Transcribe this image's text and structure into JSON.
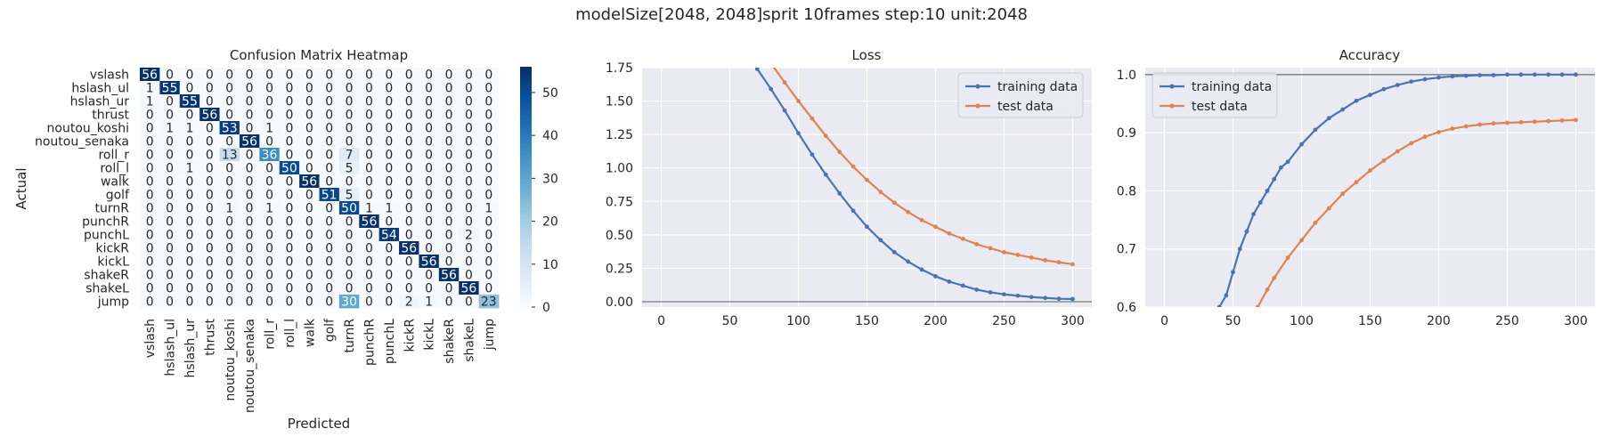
{
  "figure": {
    "suptitle": "modelSize[2048, 2048]sprit 10frames step:10 unit:2048"
  },
  "colors": {
    "training": "#4c72b0",
    "test": "#dd8452",
    "panel_bg": "#eaeaf2",
    "grid": "#ffffff",
    "hline": "#777777"
  },
  "chart_data": [
    {
      "type": "heatmap",
      "title": "Confusion Matrix Heatmap",
      "xlabel": "Predicted",
      "ylabel": "Actual",
      "labels": [
        "vslash",
        "hslash_ul",
        "hslash_ur",
        "thrust",
        "noutou_koshi",
        "noutou_senaka",
        "roll_r",
        "roll_l",
        "walk",
        "golf",
        "turnR",
        "punchR",
        "punchL",
        "kickR",
        "kickL",
        "shakeR",
        "shakeL",
        "jump"
      ],
      "matrix": [
        [
          56,
          0,
          0,
          0,
          0,
          0,
          0,
          0,
          0,
          0,
          0,
          0,
          0,
          0,
          0,
          0,
          0,
          0
        ],
        [
          1,
          55,
          0,
          0,
          0,
          0,
          0,
          0,
          0,
          0,
          0,
          0,
          0,
          0,
          0,
          0,
          0,
          0
        ],
        [
          1,
          0,
          55,
          0,
          0,
          0,
          0,
          0,
          0,
          0,
          0,
          0,
          0,
          0,
          0,
          0,
          0,
          0
        ],
        [
          0,
          0,
          0,
          56,
          0,
          0,
          0,
          0,
          0,
          0,
          0,
          0,
          0,
          0,
          0,
          0,
          0,
          0
        ],
        [
          0,
          1,
          1,
          0,
          53,
          0,
          1,
          0,
          0,
          0,
          0,
          0,
          0,
          0,
          0,
          0,
          0,
          0
        ],
        [
          0,
          0,
          0,
          0,
          0,
          56,
          0,
          0,
          0,
          0,
          0,
          0,
          0,
          0,
          0,
          0,
          0,
          0
        ],
        [
          0,
          0,
          0,
          0,
          13,
          0,
          36,
          0,
          0,
          0,
          7,
          0,
          0,
          0,
          0,
          0,
          0,
          0
        ],
        [
          0,
          0,
          1,
          0,
          0,
          0,
          0,
          50,
          0,
          0,
          5,
          0,
          0,
          0,
          0,
          0,
          0,
          0
        ],
        [
          0,
          0,
          0,
          0,
          0,
          0,
          0,
          0,
          56,
          0,
          0,
          0,
          0,
          0,
          0,
          0,
          0,
          0
        ],
        [
          0,
          0,
          0,
          0,
          0,
          0,
          0,
          0,
          0,
          51,
          5,
          0,
          0,
          0,
          0,
          0,
          0,
          0
        ],
        [
          0,
          0,
          0,
          0,
          1,
          0,
          1,
          0,
          0,
          0,
          50,
          1,
          1,
          0,
          0,
          0,
          0,
          1
        ],
        [
          0,
          0,
          0,
          0,
          0,
          0,
          0,
          0,
          0,
          0,
          0,
          56,
          0,
          0,
          0,
          0,
          0,
          0
        ],
        [
          0,
          0,
          0,
          0,
          0,
          0,
          0,
          0,
          0,
          0,
          0,
          0,
          54,
          0,
          0,
          0,
          2,
          0
        ],
        [
          0,
          0,
          0,
          0,
          0,
          0,
          0,
          0,
          0,
          0,
          0,
          0,
          0,
          56,
          0,
          0,
          0,
          0
        ],
        [
          0,
          0,
          0,
          0,
          0,
          0,
          0,
          0,
          0,
          0,
          0,
          0,
          0,
          0,
          56,
          0,
          0,
          0
        ],
        [
          0,
          0,
          0,
          0,
          0,
          0,
          0,
          0,
          0,
          0,
          0,
          0,
          0,
          0,
          0,
          56,
          0,
          0
        ],
        [
          0,
          0,
          0,
          0,
          0,
          0,
          0,
          0,
          0,
          0,
          0,
          0,
          0,
          0,
          0,
          0,
          56,
          0
        ],
        [
          0,
          0,
          0,
          0,
          0,
          0,
          0,
          0,
          0,
          0,
          30,
          0,
          0,
          2,
          1,
          0,
          0,
          23
        ]
      ],
      "colorbar": {
        "min": 0,
        "max": 56,
        "ticks": [
          0,
          10,
          20,
          30,
          40,
          50
        ]
      }
    },
    {
      "type": "line",
      "title": "Loss",
      "xlim": [
        -14,
        314
      ],
      "ylim": [
        -0.04,
        1.75
      ],
      "xticks": [
        0,
        50,
        100,
        150,
        200,
        250,
        300
      ],
      "yticks": [
        0.0,
        0.25,
        0.5,
        0.75,
        1.0,
        1.25,
        1.5,
        1.75
      ],
      "ytick_labels": [
        "0.00",
        "0.25",
        "0.50",
        "0.75",
        "1.00",
        "1.25",
        "1.50",
        "1.75"
      ],
      "hline": 0,
      "legend_loc": "upper right",
      "series": [
        {
          "name": "training data",
          "x": [
            60,
            70,
            80,
            90,
            100,
            110,
            120,
            130,
            140,
            150,
            160,
            170,
            180,
            190,
            200,
            210,
            220,
            230,
            240,
            250,
            260,
            270,
            280,
            290,
            300
          ],
          "y": [
            1.88,
            1.74,
            1.59,
            1.43,
            1.26,
            1.1,
            0.95,
            0.81,
            0.68,
            0.56,
            0.46,
            0.37,
            0.3,
            0.24,
            0.19,
            0.15,
            0.12,
            0.09,
            0.07,
            0.055,
            0.045,
            0.035,
            0.028,
            0.022,
            0.02
          ]
        },
        {
          "name": "test data",
          "x": [
            80,
            90,
            100,
            110,
            120,
            130,
            140,
            150,
            160,
            170,
            180,
            190,
            200,
            210,
            220,
            230,
            240,
            250,
            260,
            270,
            280,
            290,
            300
          ],
          "y": [
            1.78,
            1.64,
            1.5,
            1.37,
            1.24,
            1.12,
            1.01,
            0.91,
            0.82,
            0.74,
            0.67,
            0.61,
            0.56,
            0.51,
            0.47,
            0.43,
            0.4,
            0.37,
            0.35,
            0.33,
            0.31,
            0.295,
            0.28
          ]
        }
      ]
    },
    {
      "type": "line",
      "title": "Accuracy",
      "xlim": [
        -14,
        314
      ],
      "ylim": [
        0.6,
        1.012
      ],
      "xticks": [
        0,
        50,
        100,
        150,
        200,
        250,
        300
      ],
      "yticks": [
        0.6,
        0.7,
        0.8,
        0.9,
        1.0
      ],
      "ytick_labels": [
        "0.6",
        "0.7",
        "0.8",
        "0.9",
        "1.0"
      ],
      "hline": 1.0,
      "legend_loc": "upper left",
      "series": [
        {
          "name": "training data",
          "x": [
            40,
            45,
            50,
            55,
            60,
            65,
            70,
            75,
            80,
            85,
            90,
            100,
            110,
            120,
            130,
            140,
            150,
            160,
            170,
            180,
            190,
            200,
            210,
            220,
            230,
            240,
            250,
            260,
            270,
            280,
            290,
            300
          ],
          "y": [
            0.6,
            0.62,
            0.66,
            0.7,
            0.73,
            0.76,
            0.78,
            0.8,
            0.82,
            0.84,
            0.85,
            0.88,
            0.905,
            0.925,
            0.94,
            0.955,
            0.965,
            0.975,
            0.982,
            0.988,
            0.992,
            0.995,
            0.997,
            0.998,
            0.999,
            0.999,
            1.0,
            1.0,
            1.0,
            1.0,
            1.0,
            1.0
          ]
        },
        {
          "name": "test data",
          "x": [
            68,
            75,
            80,
            90,
            100,
            110,
            120,
            130,
            140,
            150,
            160,
            170,
            180,
            190,
            200,
            210,
            220,
            230,
            240,
            250,
            260,
            270,
            280,
            290,
            300
          ],
          "y": [
            0.6,
            0.63,
            0.65,
            0.685,
            0.715,
            0.745,
            0.77,
            0.795,
            0.815,
            0.835,
            0.852,
            0.868,
            0.882,
            0.893,
            0.901,
            0.907,
            0.911,
            0.914,
            0.916,
            0.917,
            0.918,
            0.919,
            0.92,
            0.921,
            0.922
          ]
        }
      ]
    }
  ]
}
